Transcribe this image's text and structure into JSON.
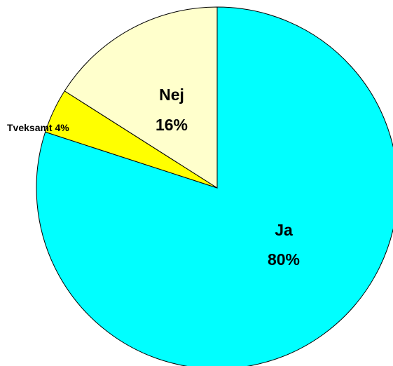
{
  "chart_data": {
    "type": "pie",
    "categories": [
      "Ja",
      "Tveksamt",
      "Nej"
    ],
    "values": [
      80,
      4,
      16
    ],
    "value_labels": [
      "80%",
      "4%",
      "16%"
    ],
    "colors": [
      "#00ffff",
      "#ffff00",
      "#ffffcc"
    ]
  }
}
